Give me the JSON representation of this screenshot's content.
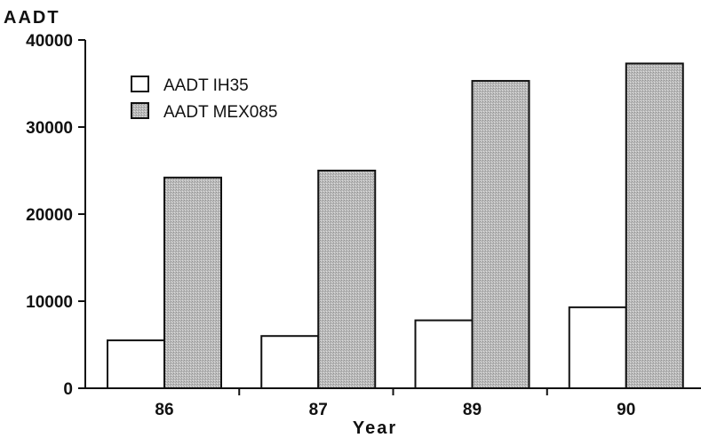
{
  "chart_data": {
    "type": "bar",
    "title": "",
    "xlabel": "Year",
    "ylabel": "AADT",
    "categories": [
      "86",
      "87",
      "89",
      "90"
    ],
    "series": [
      {
        "name": "AADT IH35",
        "values": [
          5500,
          6000,
          7800,
          9300
        ],
        "color": "#ffffff"
      },
      {
        "name": "AADT MEX085",
        "values": [
          24200,
          25000,
          35300,
          37300
        ],
        "color": "#b8b8b8"
      }
    ],
    "ylim": [
      0,
      40000
    ],
    "yticks": [
      "0",
      "10000",
      "20000",
      "30000",
      "40000"
    ],
    "grid": false,
    "legend_position": "top-left"
  }
}
